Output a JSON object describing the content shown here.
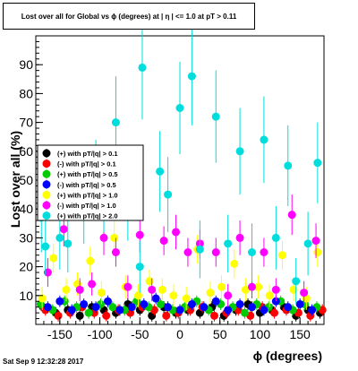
{
  "title": "Lost over all for Global vs ϕ (degrees) at | η | <= 1.0 at pT > 0.11",
  "footer": "Sat Sep  9 12:32:28 2017",
  "chart_data": {
    "type": "scatter",
    "title": "Lost over all for Global vs ϕ (degrees) at | η | <= 1.0 at pT > 0.11",
    "xlabel": "ϕ (degrees)",
    "ylabel": "Lost over all (%)",
    "xlim": [
      -180,
      180
    ],
    "ylim": [
      0,
      100
    ],
    "xticks": [
      -150,
      -100,
      -50,
      0,
      50,
      100,
      150
    ],
    "yticks": [
      10,
      20,
      30,
      40,
      50,
      60,
      70,
      80,
      90
    ],
    "legend": {
      "placement": "center-left",
      "entries": [
        {
          "label": "(+) with pT/|q| > 0.1",
          "color": "#000000"
        },
        {
          "label": "(-) with pT/|q| > 0.1",
          "color": "#ff0000"
        },
        {
          "label": "(+) with pT/|q| > 0.5",
          "color": "#00cc00"
        },
        {
          "label": "(-) with pT/|q| > 0.5",
          "color": "#0000ff"
        },
        {
          "label": "(+) with pT/|q| > 1.0",
          "color": "#ffff00"
        },
        {
          "label": "(-) with pT/|q| > 1.0",
          "color": "#ff00ff"
        },
        {
          "label": "(+) with pT/|q| > 2.0",
          "color": "#00dddd"
        }
      ]
    },
    "series": [
      {
        "color": "#000000",
        "x": [
          -171,
          -155,
          -140,
          -125,
          -110,
          -95,
          -80,
          -65,
          -50,
          -35,
          -20,
          -5,
          10,
          25,
          40,
          55,
          70,
          85,
          100,
          115,
          130,
          145,
          160,
          175
        ],
        "y": [
          6,
          4,
          5,
          3,
          6,
          5,
          4,
          7,
          5,
          3,
          6,
          4,
          5,
          4,
          6,
          3,
          5,
          7,
          4,
          5,
          6,
          3,
          5,
          4
        ],
        "err": [
          2,
          2,
          2,
          2,
          2,
          2,
          2,
          2,
          2,
          2,
          2,
          2,
          2,
          2,
          2,
          2,
          2,
          2,
          2,
          2,
          2,
          2,
          2,
          2
        ]
      },
      {
        "color": "#ff0000",
        "x": [
          -168,
          -152,
          -137,
          -122,
          -107,
          -92,
          -77,
          -62,
          -47,
          -32,
          -17,
          -2,
          13,
          28,
          43,
          58,
          73,
          88,
          103,
          118,
          133,
          148,
          163,
          178
        ],
        "y": [
          5,
          3,
          4,
          6,
          4,
          3,
          5,
          4,
          6,
          5,
          3,
          4,
          5,
          6,
          3,
          4,
          5,
          3,
          6,
          4,
          5,
          4,
          3,
          5
        ],
        "err": [
          2,
          2,
          2,
          2,
          2,
          2,
          2,
          2,
          2,
          2,
          2,
          2,
          2,
          2,
          2,
          2,
          2,
          2,
          2,
          2,
          2,
          2,
          2,
          2
        ]
      },
      {
        "color": "#00cc00",
        "x": [
          -174,
          -159,
          -144,
          -129,
          -114,
          -99,
          -84,
          -69,
          -54,
          -39,
          -24,
          -9,
          6,
          21,
          36,
          51,
          66,
          81,
          96,
          111,
          126,
          141,
          156,
          171
        ],
        "y": [
          7,
          5,
          8,
          6,
          4,
          7,
          6,
          5,
          8,
          6,
          7,
          5,
          6,
          8,
          5,
          7,
          6,
          4,
          7,
          6,
          8,
          5,
          7,
          6
        ],
        "err": [
          2,
          2,
          2,
          2,
          2,
          2,
          2,
          2,
          2,
          2,
          2,
          2,
          2,
          2,
          2,
          2,
          2,
          2,
          2,
          2,
          2,
          2,
          2,
          2
        ]
      },
      {
        "color": "#0000ff",
        "x": [
          -165,
          -150,
          -135,
          -120,
          -105,
          -90,
          -75,
          -60,
          -45,
          -30,
          -15,
          0,
          15,
          30,
          45,
          60,
          75,
          90,
          105,
          120,
          135,
          150,
          165
        ],
        "y": [
          6,
          8,
          5,
          7,
          6,
          8,
          5,
          6,
          7,
          9,
          6,
          5,
          7,
          6,
          8,
          5,
          7,
          6,
          5,
          8,
          6,
          7,
          5
        ],
        "err": [
          2,
          2,
          2,
          2,
          2,
          2,
          2,
          2,
          2,
          2,
          2,
          2,
          2,
          2,
          2,
          2,
          2,
          2,
          2,
          2,
          2,
          2,
          2
        ]
      },
      {
        "color": "#ffff00",
        "x": [
          -172,
          -158,
          -142,
          -128,
          -112,
          -98,
          -82,
          -68,
          -52,
          -38,
          -22,
          -8,
          8,
          22,
          38,
          52,
          68,
          82,
          98,
          112,
          128,
          142,
          158,
          172
        ],
        "y": [
          9,
          23,
          12,
          14,
          22,
          11,
          30,
          13,
          10,
          15,
          12,
          10,
          9,
          26,
          11,
          13,
          21,
          12,
          13,
          10,
          24,
          12,
          9,
          25
        ],
        "err": [
          4,
          5,
          4,
          4,
          5,
          4,
          6,
          4,
          4,
          4,
          4,
          4,
          4,
          5,
          4,
          4,
          5,
          4,
          4,
          4,
          5,
          4,
          4,
          5
        ]
      },
      {
        "color": "#ff00ff",
        "x": [
          -165,
          -145,
          -125,
          -110,
          -95,
          -80,
          -65,
          -50,
          -35,
          -20,
          -5,
          10,
          25,
          45,
          60,
          75,
          90,
          105,
          120,
          140,
          155,
          170
        ],
        "y": [
          18,
          33,
          12,
          14,
          30,
          25,
          13,
          31,
          12,
          29,
          32,
          25,
          28,
          25,
          10,
          30,
          13,
          25,
          12,
          38,
          11,
          29
        ],
        "err": [
          5,
          6,
          4,
          4,
          6,
          5,
          4,
          6,
          4,
          5,
          6,
          5,
          5,
          5,
          4,
          6,
          4,
          5,
          4,
          7,
          4,
          6
        ]
      },
      {
        "color": "#00dddd",
        "x": [
          -173,
          -168,
          -150,
          -140,
          -120,
          -105,
          -95,
          -80,
          -65,
          -50,
          -47,
          -25,
          -15,
          0,
          15,
          25,
          45,
          60,
          75,
          90,
          105,
          120,
          135,
          145,
          160,
          172
        ],
        "y": [
          37,
          27,
          30,
          28,
          40,
          50,
          45,
          70,
          41,
          20,
          89,
          53,
          45,
          75,
          86,
          26,
          72,
          28,
          60,
          25,
          64,
          30,
          55,
          15,
          28,
          56
        ],
        "err": [
          12,
          10,
          11,
          10,
          12,
          14,
          13,
          16,
          12,
          9,
          18,
          14,
          13,
          16,
          17,
          10,
          16,
          10,
          15,
          10,
          15,
          11,
          14,
          8,
          11,
          14
        ]
      }
    ]
  }
}
